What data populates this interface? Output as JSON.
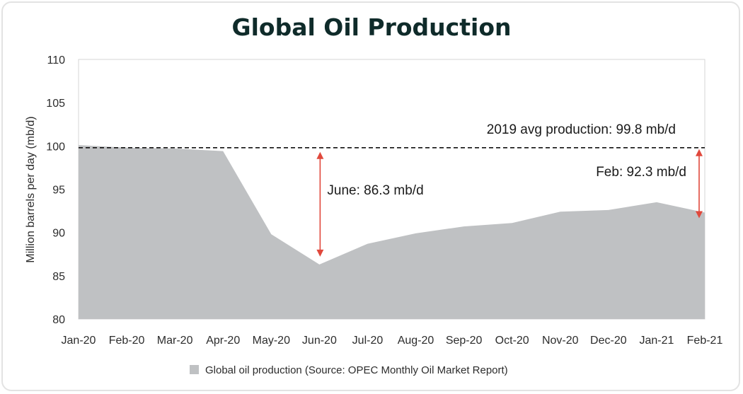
{
  "colors": {
    "area": "#bfc1c3",
    "arrow": "#e0483c",
    "title": "#0f2b2a",
    "reference_line": "#111111",
    "plot_border": "#d6d6d6"
  },
  "chart_data": {
    "type": "area",
    "title": "Global Oil Production",
    "xlabel": "",
    "ylabel": "Million barrels per day (mb/d)",
    "ylim": [
      80,
      110
    ],
    "yticks": [
      80,
      85,
      90,
      95,
      100,
      105,
      110
    ],
    "grid": false,
    "legend_position": "bottom-center",
    "categories": [
      "Jan-20",
      "Feb-20",
      "Mar-20",
      "Apr-20",
      "May-20",
      "Jun-20",
      "Jul-20",
      "Aug-20",
      "Sep-20",
      "Oct-20",
      "Nov-20",
      "Dec-20",
      "Jan-21",
      "Feb-21"
    ],
    "series": [
      {
        "name": "Global oil production (Source: OPEC Monthly Oil Market Report)",
        "values": [
          100.1,
          99.8,
          99.7,
          99.4,
          89.8,
          86.3,
          88.7,
          89.9,
          90.7,
          91.1,
          92.4,
          92.6,
          93.5,
          92.3
        ]
      }
    ],
    "reference_line": {
      "value": 99.8,
      "label": "2019 avg production: 99.8 mb/d"
    },
    "annotations": [
      {
        "category": "Jun-20",
        "from": 99.8,
        "to": 86.3,
        "label": "June: 86.3 mb/d"
      },
      {
        "category": "Feb-21",
        "from": 99.8,
        "to": 92.3,
        "label": "Feb: 92.3 mb/d"
      }
    ]
  }
}
